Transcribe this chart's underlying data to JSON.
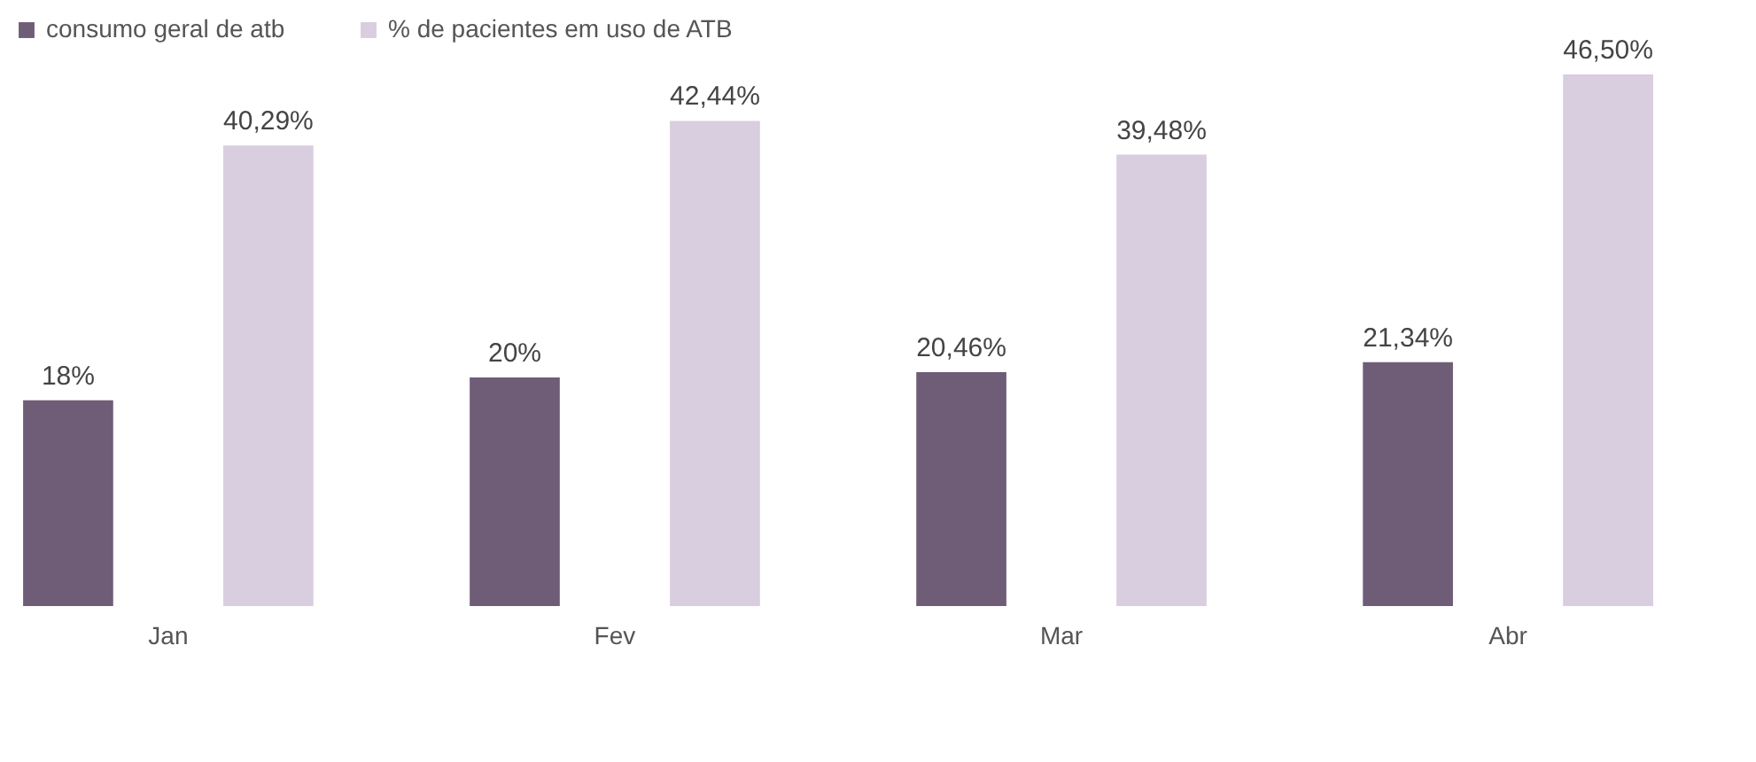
{
  "chart_data": {
    "type": "bar",
    "categories": [
      "Jan",
      "Fev",
      "Mar",
      "Abr"
    ],
    "series": [
      {
        "name": "consumo geral de atb",
        "color": "#6f5d78",
        "values": [
          18,
          20,
          20.46,
          21.34
        ],
        "value_labels": [
          "18%",
          "20%",
          "20,46%",
          "21,34%"
        ]
      },
      {
        "name": "% de pacientes em uso de ATB",
        "color": "#d9cde0",
        "values": [
          40.29,
          42.44,
          39.48,
          46.5
        ],
        "value_labels": [
          "40,29%",
          "42,44%",
          "39,48%",
          "46,50%"
        ]
      }
    ],
    "legend": "top",
    "grid": false
  }
}
